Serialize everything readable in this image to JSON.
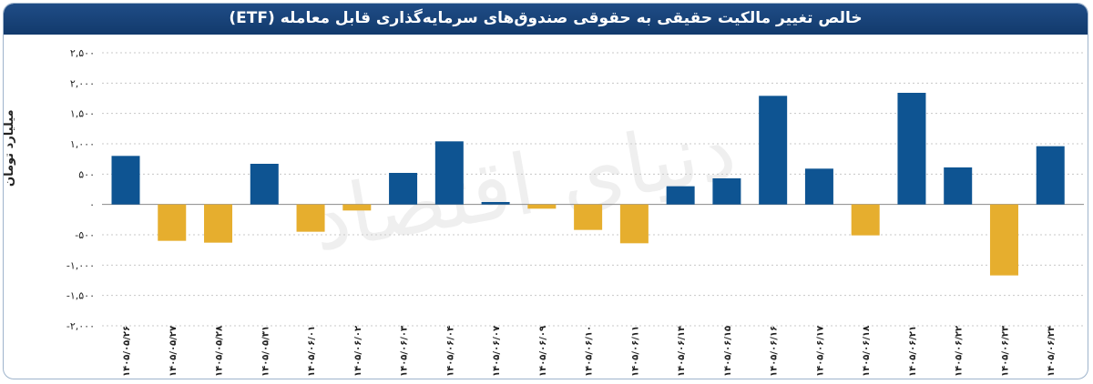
{
  "title": "خالص تغییر مالکیت حقیقی به حقوقی صندوق‌های سرمایه‌گذاری قابل معامله (ETF)",
  "watermark": "دنیای اقتصاد",
  "colors": {
    "positive": "#0e5492",
    "negative": "#e6ae2e",
    "title_bg": "#1a4479"
  },
  "chart_data": {
    "type": "bar",
    "ylabel": "میلیارد تومان",
    "ylim": [
      -2000,
      2500
    ],
    "yticks": [
      2500,
      2000,
      1500,
      1000,
      500,
      0,
      -500,
      -1000,
      -1500,
      -2000
    ],
    "ytick_labels": [
      "۲,۵۰۰",
      "۲,۰۰۰",
      "۱,۵۰۰",
      "۱,۰۰۰",
      "۵۰۰",
      "۰",
      "-۵۰۰",
      "-۱,۰۰۰",
      "-۱,۵۰۰",
      "-۲,۰۰۰"
    ],
    "categories": [
      "۱۴۰۵/۰۵/۲۶",
      "۱۴۰۵/۰۵/۲۷",
      "۱۴۰۵/۰۵/۲۸",
      "۱۴۰۵/۰۵/۳۱",
      "۱۴۰۵/۰۶/۰۱",
      "۱۴۰۵/۰۶/۰۲",
      "۱۴۰۵/۰۶/۰۳",
      "۱۴۰۵/۰۶/۰۴",
      "۱۴۰۵/۰۶/۰۷",
      "۱۴۰۵/۰۶/۰۹",
      "۱۴۰۵/۰۶/۱۰",
      "۱۴۰۵/۰۶/۱۱",
      "۱۴۰۵/۰۶/۱۴",
      "۱۴۰۵/۰۶/۱۵",
      "۱۴۰۵/۰۶/۱۶",
      "۱۴۰۵/۰۶/۱۷",
      "۱۴۰۵/۰۶/۱۸",
      "۱۴۰۵/۰۶/۲۱",
      "۱۴۰۵/۰۶/۲۲",
      "۱۴۰۵/۰۶/۲۳",
      "۱۴۰۵/۰۶/۲۴"
    ],
    "values": [
      800,
      -600,
      -630,
      670,
      -450,
      -100,
      520,
      1040,
      40,
      -70,
      -420,
      -640,
      300,
      430,
      1790,
      590,
      -510,
      1840,
      610,
      -1170,
      960
    ],
    "grid": true,
    "legend": "none"
  }
}
